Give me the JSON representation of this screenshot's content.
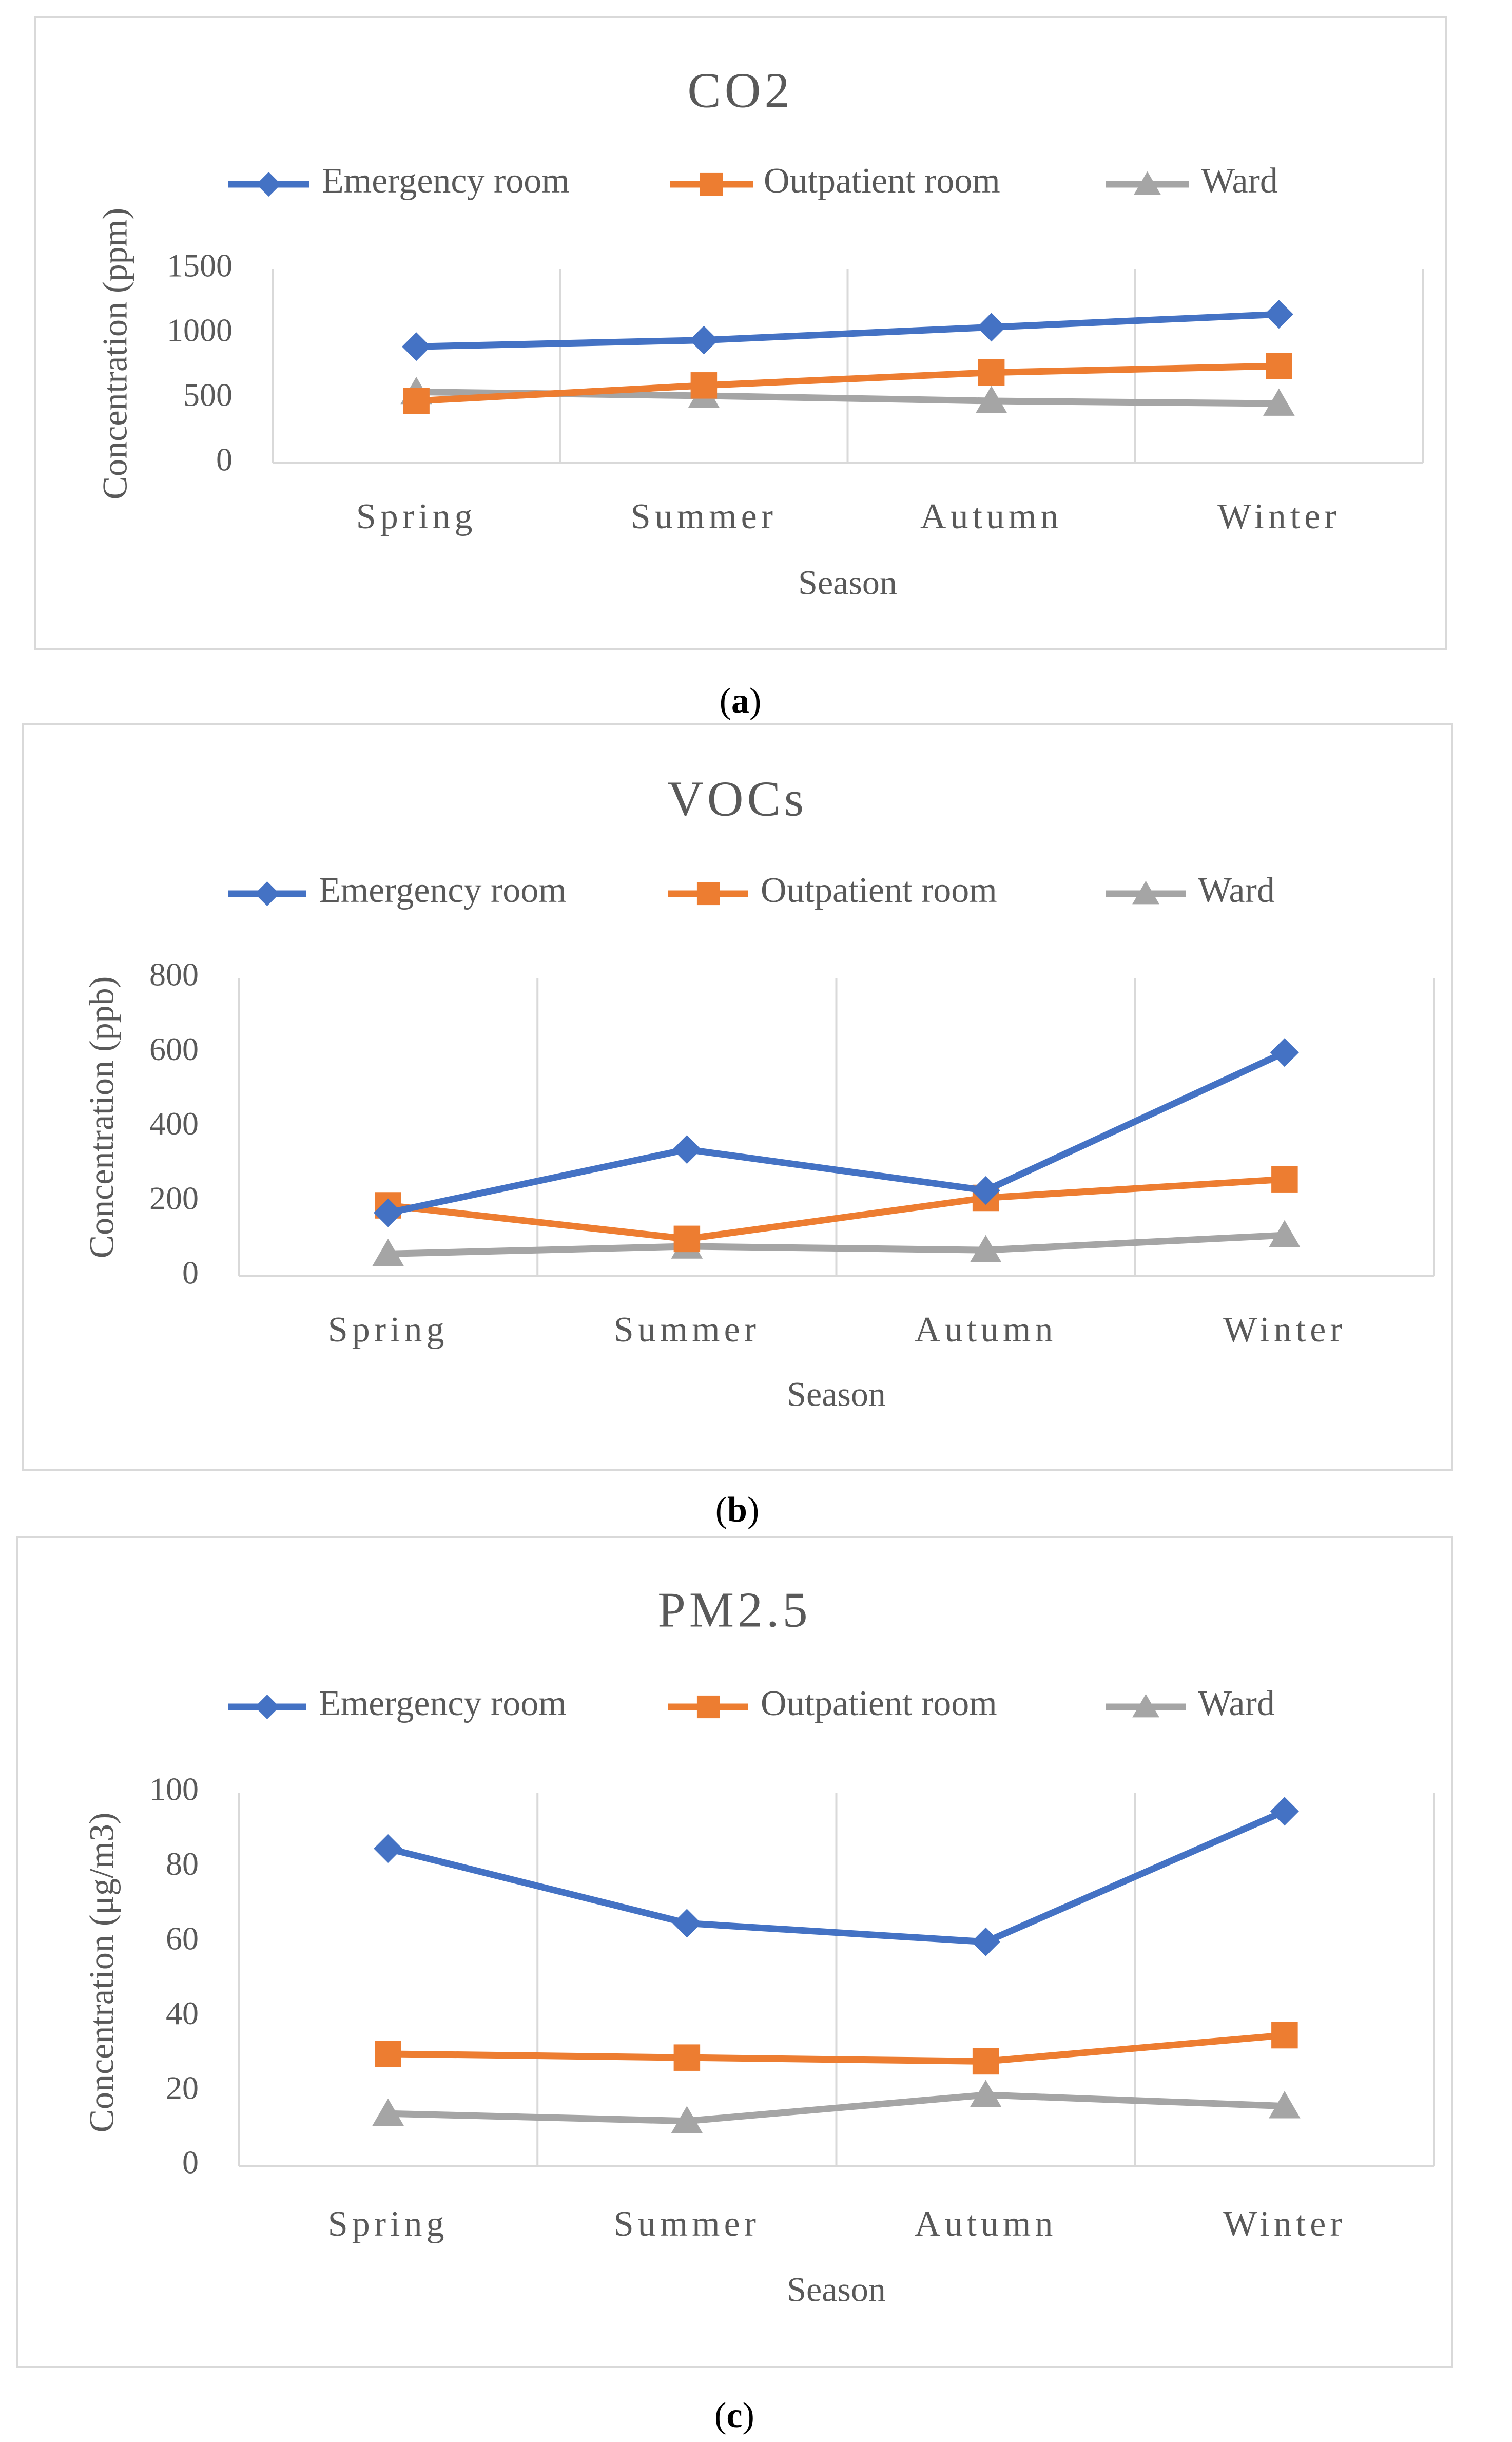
{
  "chart_data": [
    {
      "type": "line",
      "title": "CO2",
      "xlabel": "Season",
      "ylabel": "Concentration (ppm)",
      "categories": [
        "Spring",
        "Summer",
        "Autumn",
        "Winter"
      ],
      "ylim": [
        0,
        1500
      ],
      "yticks": [
        0,
        500,
        1000,
        1500
      ],
      "yticks_labels": [
        "0",
        "500",
        "1000",
        "1500"
      ],
      "grid": "vertical",
      "legend_position": "top",
      "caption": "(a)",
      "caption_letter": "a",
      "series": [
        {
          "name": "Emergency room",
          "color": "#4472C4",
          "marker": "diamond",
          "values": [
            900,
            950,
            1050,
            1150
          ]
        },
        {
          "name": "Outpatient room",
          "color": "#ED7D31",
          "marker": "square",
          "values": [
            480,
            600,
            700,
            750
          ]
        },
        {
          "name": "Ward",
          "color": "#A5A5A5",
          "marker": "triangle",
          "values": [
            550,
            520,
            480,
            460
          ]
        }
      ]
    },
    {
      "type": "line",
      "title": "VOCs",
      "xlabel": "Season",
      "ylabel": "Concentration (ppb)",
      "categories": [
        "Spring",
        "Summer",
        "Autumn",
        "Winter"
      ],
      "ylim": [
        0,
        800
      ],
      "yticks": [
        0,
        200,
        400,
        600,
        800
      ],
      "yticks_labels": [
        "0",
        "200",
        "400",
        "600",
        "800"
      ],
      "grid": "vertical",
      "legend_position": "top",
      "caption": "(b)",
      "caption_letter": "b",
      "series": [
        {
          "name": "Emergency room",
          "color": "#4472C4",
          "marker": "diamond",
          "values": [
            170,
            340,
            230,
            600
          ]
        },
        {
          "name": "Outpatient room",
          "color": "#ED7D31",
          "marker": "square",
          "values": [
            190,
            100,
            210,
            260
          ]
        },
        {
          "name": "Ward",
          "color": "#A5A5A5",
          "marker": "triangle",
          "values": [
            60,
            80,
            70,
            110
          ]
        }
      ]
    },
    {
      "type": "line",
      "title": "PM2.5",
      "xlabel": "Season",
      "ylabel": "Concentration (μg/m3)",
      "categories": [
        "Spring",
        "Summer",
        "Autumn",
        "Winter"
      ],
      "ylim": [
        0,
        100
      ],
      "yticks": [
        0,
        20,
        40,
        60,
        80,
        100
      ],
      "yticks_labels": [
        "0",
        "20",
        "40",
        "60",
        "80",
        "100"
      ],
      "grid": "vertical",
      "legend_position": "top",
      "caption": "(c)",
      "caption_letter": "c",
      "series": [
        {
          "name": "Emergency room",
          "color": "#4472C4",
          "marker": "diamond",
          "values": [
            85,
            65,
            60,
            95
          ]
        },
        {
          "name": "Outpatient room",
          "color": "#ED7D31",
          "marker": "square",
          "values": [
            30,
            29,
            28,
            35
          ]
        },
        {
          "name": "Ward",
          "color": "#A5A5A5",
          "marker": "triangle",
          "values": [
            14,
            12,
            19,
            16
          ]
        }
      ]
    }
  ]
}
